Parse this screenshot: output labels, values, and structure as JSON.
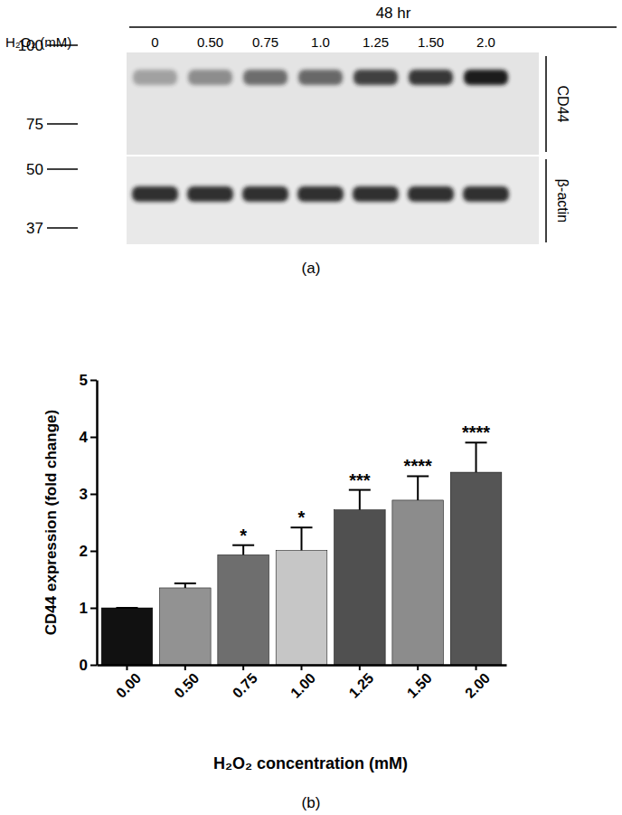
{
  "blot": {
    "title": "48 hr",
    "row_label": "H₂O₂ (mM)",
    "lanes": [
      "0",
      "0.50",
      "0.75",
      "1.0",
      "1.25",
      "1.50",
      "2.0"
    ],
    "markers": [
      100,
      75,
      50,
      37
    ],
    "bands": [
      "CD44",
      "β-actin"
    ]
  },
  "panel_labels": [
    "(a)",
    "(b)"
  ],
  "chart_data": {
    "type": "bar",
    "x_label": "H₂O₂ concentration (mM)",
    "y_label": "CD44 expression (fold change)",
    "categories": [
      "0.00",
      "0.50",
      "0.75",
      "1.00",
      "1.25",
      "1.50",
      "2.00"
    ],
    "values": [
      1.0,
      1.35,
      1.93,
      2.01,
      2.72,
      2.89,
      3.38
    ],
    "errors": [
      0,
      0.08,
      0.17,
      0.4,
      0.35,
      0.42,
      0.52
    ],
    "annotations": [
      null,
      null,
      "*",
      "*",
      "***",
      "****",
      "****"
    ],
    "colors": [
      "#111111",
      "#929292",
      "#6e6e6e",
      "#c6c6c6",
      "#505050",
      "#8c8c8c",
      "#555555"
    ],
    "ylim": [
      0,
      5
    ],
    "yticks": [
      0,
      1,
      2,
      3,
      4,
      5
    ],
    "grid": false
  }
}
